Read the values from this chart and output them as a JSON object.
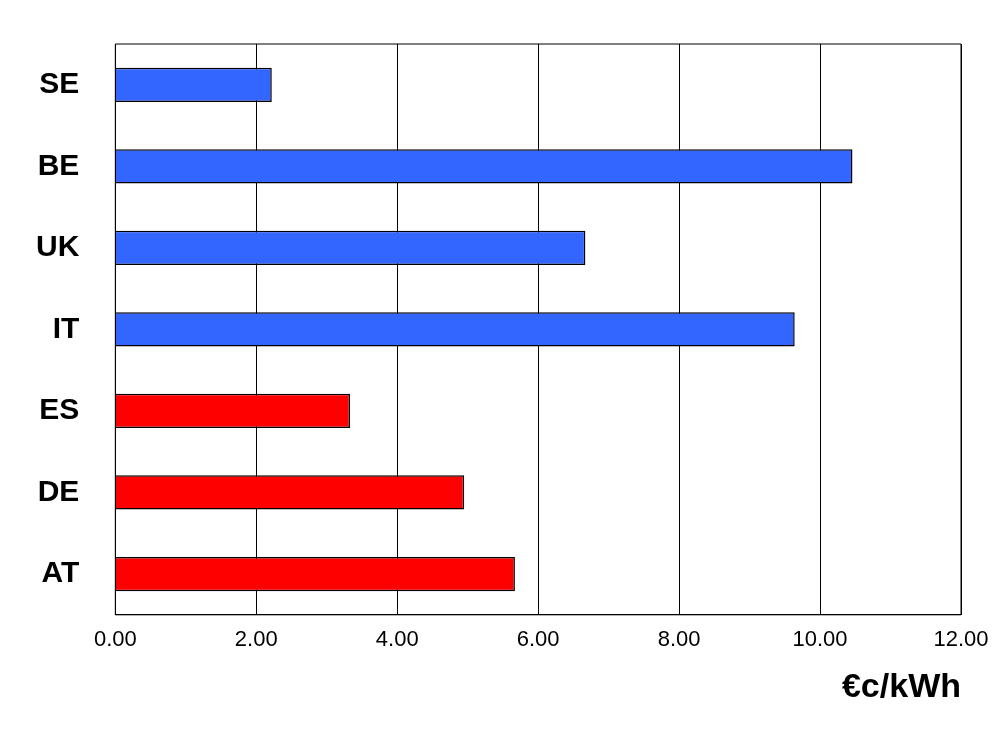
{
  "chart_data": {
    "type": "bar",
    "orientation": "horizontal",
    "xlabel": "€c/kWh",
    "categories": [
      "SE",
      "BE",
      "UK",
      "IT",
      "ES",
      "DE",
      "AT"
    ],
    "values": [
      2.22,
      10.46,
      6.67,
      9.64,
      3.33,
      4.95,
      5.67
    ],
    "colors": [
      "#3366ff",
      "#3366ff",
      "#3366ff",
      "#3366ff",
      "#ff0000",
      "#ff0000",
      "#ff0000"
    ],
    "xlim": [
      0,
      12
    ],
    "xticks": [
      {
        "value": 0,
        "label": "0.00"
      },
      {
        "value": 2,
        "label": "2.00"
      },
      {
        "value": 4,
        "label": "4.00"
      },
      {
        "value": 6,
        "label": "6.00"
      },
      {
        "value": 8,
        "label": "8.00"
      },
      {
        "value": 10,
        "label": "10.00"
      },
      {
        "value": 12,
        "label": "12.00"
      }
    ],
    "grid": "x",
    "legend": false
  }
}
